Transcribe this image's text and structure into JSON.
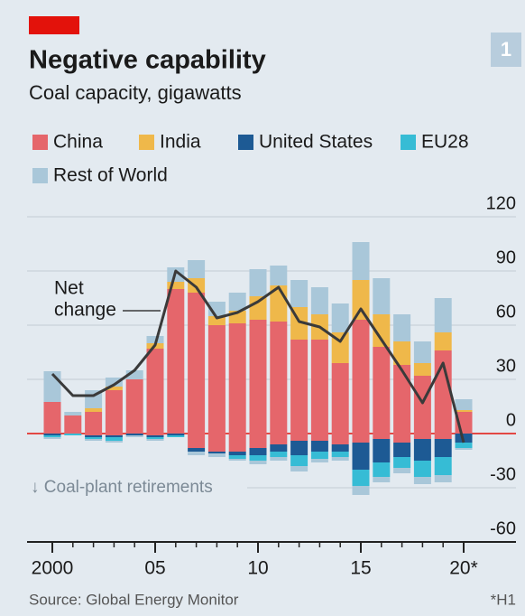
{
  "chart_data": {
    "type": "bar",
    "badge": "1",
    "title": "Negative capability",
    "subtitle": "Coal capacity, gigawatts",
    "x": [
      2000,
      2001,
      2002,
      2003,
      2004,
      2005,
      2006,
      2007,
      2008,
      2009,
      2010,
      2011,
      2012,
      2013,
      2014,
      2015,
      2016,
      2017,
      2018,
      2019,
      2020
    ],
    "xticks": [
      2000,
      {
        "value": 2005,
        "label": "05"
      },
      {
        "value": 2010,
        "label": "10"
      },
      {
        "value": 2015,
        "label": "15"
      },
      {
        "value": 2020,
        "label": "20*"
      }
    ],
    "ylim": [
      -60,
      120
    ],
    "yticks": [
      120,
      90,
      60,
      30,
      0,
      -30,
      -60
    ],
    "grid": true,
    "series": [
      {
        "name": "China",
        "color": "#e5666b",
        "values": [
          17.5,
          10,
          12,
          24,
          30,
          47,
          80,
          78,
          60,
          61,
          63,
          62,
          52,
          52,
          39,
          63,
          48,
          38,
          32,
          46,
          12
        ],
        "retirements": [
          0,
          0,
          -1,
          -1,
          0,
          -1,
          0,
          -8,
          -10,
          -10,
          -8,
          -6,
          -4,
          -4,
          -6,
          -5,
          -3,
          -5,
          -3,
          -3,
          0
        ]
      },
      {
        "name": "India",
        "color": "#efb84a",
        "values": [
          0,
          0,
          2,
          2,
          0,
          3,
          4,
          8,
          5,
          7,
          13,
          20,
          18,
          14,
          17,
          22,
          18,
          13,
          7,
          10,
          1
        ],
        "retirements": [
          0,
          0,
          0,
          0,
          0,
          0,
          0,
          0,
          0,
          0,
          0,
          0,
          0,
          0,
          0,
          0,
          0,
          0,
          0,
          0,
          0
        ]
      },
      {
        "name": "United States",
        "color": "#1d5a94",
        "values": [
          0,
          0,
          0,
          0,
          0,
          0,
          0,
          0,
          0,
          0,
          0,
          0,
          0,
          0,
          0,
          0,
          0,
          0,
          0,
          0,
          0
        ],
        "retirements": [
          -1,
          0,
          -1,
          -1,
          -1,
          -1,
          -1,
          -2,
          -1,
          -2,
          -4,
          -4,
          -8,
          -6,
          -4,
          -15,
          -13,
          -8,
          -12,
          -10,
          -5
        ]
      },
      {
        "name": "EU28",
        "color": "#36bcd5",
        "values": [
          0,
          0,
          0,
          0,
          0,
          0,
          0,
          0,
          0,
          0,
          0,
          0,
          0,
          0,
          0,
          0,
          0,
          0,
          0,
          0,
          0
        ],
        "retirements": [
          -1,
          -1,
          -1,
          -2,
          0,
          -1,
          -1,
          0,
          0,
          -2,
          -3,
          -3,
          -6,
          -4,
          -3,
          -9,
          -8,
          -6,
          -9,
          -10,
          -3
        ]
      },
      {
        "name": "Rest of World",
        "color": "#a9c7d9",
        "values": [
          17,
          2,
          10,
          5,
          5,
          4,
          8,
          10,
          8,
          10,
          15,
          11,
          15,
          15,
          16,
          21,
          20,
          15,
          12,
          19,
          6
        ],
        "retirements": [
          -1,
          0,
          -1,
          -1,
          -1,
          -1,
          0,
          -2,
          -2,
          -1,
          -2,
          -2,
          -3,
          -2,
          -2,
          -5,
          -3,
          -3,
          -4,
          -4,
          -1
        ]
      }
    ],
    "net": {
      "label": [
        "Net",
        "change"
      ],
      "color": "#3a3a3a",
      "values": [
        33,
        21,
        21,
        27,
        35,
        49,
        90,
        81,
        64,
        67,
        73,
        81,
        62,
        59,
        51,
        69,
        52,
        35,
        17,
        39,
        -5
      ]
    },
    "annotation": "↓ Coal-plant retirements",
    "source": "Source: Global Energy Monitor",
    "footnote": "*H1"
  }
}
